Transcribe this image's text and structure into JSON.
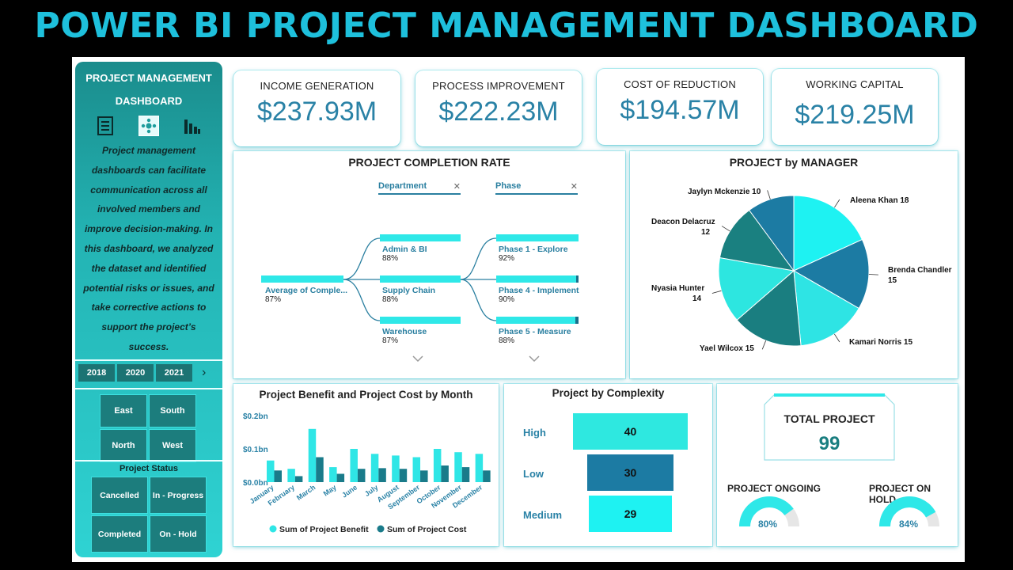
{
  "banner": "POWER BI PROJECT MANAGEMENT DASHBOARD",
  "sidebar": {
    "title_line1": "PROJECT MANAGEMENT",
    "title_line2": "DASHBOARD",
    "description": "Project management dashboards can facilitate communication across all involved members and improve decision-making. In this dashboard, we analyzed the dataset and identified potential risks or issues, and take corrective actions to support the project’s success.",
    "years": [
      "2018",
      "2020",
      "2021"
    ],
    "regions": [
      "East",
      "South",
      "North",
      "West"
    ],
    "status_title": "Project Status",
    "statuses": [
      "Cancelled",
      "In - Progress",
      "Completed",
      "On - Hold"
    ]
  },
  "kpis": [
    {
      "label": "INCOME GENERATION",
      "value": "$237.93M"
    },
    {
      "label": "PROCESS IMPROVEMENT",
      "value": "$222.23M"
    },
    {
      "label": "COST OF REDUCTION",
      "value": "$194.57M"
    },
    {
      "label": "WORKING CAPITAL",
      "value": "$219.25M"
    }
  ],
  "completion": {
    "title": "PROJECT COMPLETION RATE",
    "head_department": "Department",
    "head_phase": "Phase",
    "close_glyph": "✕",
    "root_label": "Average of Comple...",
    "root_pct": "87%",
    "departments": [
      {
        "label": "Admin & BI",
        "pct": "88%"
      },
      {
        "label": "Supply Chain",
        "pct": "88%"
      },
      {
        "label": "Warehouse",
        "pct": "87%"
      }
    ],
    "phases": [
      {
        "label": "Phase 1 - Explore",
        "pct": "92%"
      },
      {
        "label": "Phase 4 - Implement",
        "pct": "90%"
      },
      {
        "label": "Phase 5 - Measure",
        "pct": "88%"
      }
    ]
  },
  "manager": {
    "title": "PROJECT by MANAGER",
    "slices": [
      {
        "name": "Aleena Khan",
        "value": 18,
        "color": "#1ef2f2"
      },
      {
        "name": "Brenda Chandler",
        "value": 15,
        "color": "#1c7ba3"
      },
      {
        "name": "Kamari Norris",
        "value": 15,
        "color": "#2ee4e4"
      },
      {
        "name": "Yael Wilcox",
        "value": 15,
        "color": "#1a7e80"
      },
      {
        "name": "Nyasia Hunter",
        "value": 14,
        "color": "#2de6e0"
      },
      {
        "name": "Deacon Delacruz",
        "value": 12,
        "color": "#1a8080"
      },
      {
        "name": "Jaylyn Mckenzie",
        "value": 10,
        "color": "#1c7ba3"
      }
    ],
    "labels": {
      "aleena": "Aleena Khan 18",
      "brenda_1": "Brenda Chandler",
      "brenda_2": "15",
      "kamari": "Kamari Norris 15",
      "yael": "Yael Wilcox 15",
      "nyasia_1": "Nyasia Hunter",
      "nyasia_2": "14",
      "deacon_1": "Deacon Delacruz",
      "deacon_2": "12",
      "jaylyn": "Jaylyn Mckenzie 10"
    }
  },
  "chart_data": {
    "type": "bar",
    "title": "Project Benefit and Project Cost by Month",
    "categories": [
      "January",
      "February",
      "March",
      "May",
      "June",
      "July",
      "August",
      "September",
      "October",
      "November",
      "December"
    ],
    "series": [
      {
        "name": "Sum of  Project Benefit",
        "color": "#2fe6e6",
        "values": [
          0.065,
          0.04,
          0.16,
          0.045,
          0.1,
          0.085,
          0.08,
          0.075,
          0.1,
          0.09,
          0.085
        ]
      },
      {
        "name": "Sum of  Project Cost",
        "color": "#1a7b8a",
        "values": [
          0.035,
          0.018,
          0.075,
          0.025,
          0.04,
          0.042,
          0.04,
          0.035,
          0.05,
          0.045,
          0.035
        ]
      }
    ],
    "yticks": [
      "$0.2bn",
      "$0.1bn",
      "$0.0bn"
    ],
    "ylim": [
      0,
      0.2
    ],
    "legend": "bottom"
  },
  "complexity": {
    "title": "Project by Complexity",
    "items": [
      {
        "label": "High",
        "value": "40",
        "color": "#2ee8e0"
      },
      {
        "label": "Low",
        "value": "30",
        "color": "#1c7ba3"
      },
      {
        "label": "Medium",
        "value": "29",
        "color": "#1ef2f2"
      }
    ]
  },
  "totals": {
    "total_label": "TOTAL PROJECT",
    "total_value": "99",
    "ongoing_label": "PROJECT ONGOING",
    "ongoing_pct": "80%",
    "ongoing_fraction": 0.8,
    "onhold_label": "PROJECT ON HOLD",
    "onhold_pct": "84%",
    "onhold_fraction": 0.84,
    "gauge_color": "#2ee8e8"
  }
}
